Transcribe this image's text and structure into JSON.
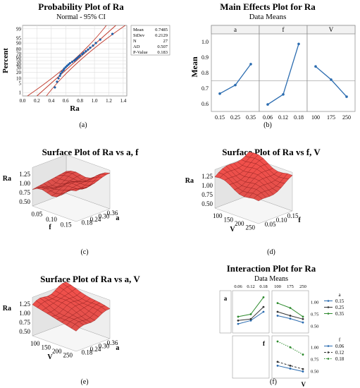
{
  "colors": {
    "dot": "#1f5fa8",
    "line": "#2b6cb0",
    "ci": "#c0392b",
    "surface": "#d9534f",
    "surface_dark": "#8b1a1a",
    "green": "#2e8b2e",
    "grid": "#d8d8d8"
  },
  "chart_data": [
    {
      "id": "a",
      "type": "scatter",
      "title": "Probability Plot of Ra",
      "subtitle": "Normal - 95% CI",
      "xlabel": "Ra",
      "ylabel": "Percent",
      "xticks": [
        "0.0",
        "0.2",
        "0.4",
        "0.6",
        "0.8",
        "1.0",
        "1.2",
        "1.4"
      ],
      "yticks": [
        "1",
        "5",
        "10",
        "20",
        "30",
        "40",
        "50",
        "60",
        "70",
        "80",
        "90",
        "95",
        "99"
      ],
      "xlim": [
        0,
        1.45
      ],
      "stats": [
        {
          "label": "Mean",
          "value": "0.7485"
        },
        {
          "label": "StDev",
          "value": "0.2129"
        },
        {
          "label": "N",
          "value": "27"
        },
        {
          "label": "AD",
          "value": "0.507"
        },
        {
          "label": "P-Value",
          "value": "0.183"
        }
      ],
      "mean": 0.7485,
      "stdev": 0.2129,
      "points": [
        0.45,
        0.48,
        0.5,
        0.52,
        0.53,
        0.55,
        0.57,
        0.58,
        0.6,
        0.62,
        0.64,
        0.66,
        0.69,
        0.72,
        0.74,
        0.76,
        0.78,
        0.8,
        0.83,
        0.85,
        0.88,
        0.91,
        0.94,
        0.98,
        1.02,
        1.08,
        1.25
      ],
      "caption": "(a)"
    },
    {
      "id": "b",
      "type": "line",
      "title": "Main Effects Plot for Ra",
      "subtitle": "Data Means",
      "ylabel": "Mean",
      "ylim": [
        0.55,
        1.05
      ],
      "yticks": [
        "0.6",
        "0.7",
        "0.8",
        "0.9",
        "1.0"
      ],
      "reference_mean": 0.7485,
      "panels": [
        {
          "name": "a",
          "x": [
            "0.15",
            "0.25",
            "0.35"
          ],
          "y": [
            0.665,
            0.72,
            0.855
          ]
        },
        {
          "name": "f",
          "x": [
            "0.06",
            "0.12",
            "0.18"
          ],
          "y": [
            0.595,
            0.66,
            0.985
          ]
        },
        {
          "name": "V",
          "x": [
            "100",
            "175",
            "250"
          ],
          "y": [
            0.84,
            0.755,
            0.645
          ]
        }
      ],
      "caption": "(b)"
    },
    {
      "id": "c",
      "type": "surface",
      "title": "Surface Plot of Ra vs a, f",
      "zlabel": "Ra",
      "zticks": [
        "0.50",
        "0.75",
        "1.00",
        "1.25"
      ],
      "xlabel": "f",
      "xticks": [
        "0.05",
        "0.10",
        "0.15"
      ],
      "ylabel": "a",
      "yticks": [
        "0.18",
        "0.24",
        "0.30",
        "0.36"
      ],
      "caption": "(c)"
    },
    {
      "id": "d",
      "type": "surface",
      "title": "Surface Plot of Ra vs f, V",
      "zlabel": "Ra",
      "zticks": [
        "0.50",
        "0.75",
        "1.00",
        "1.25"
      ],
      "xlabel": "V",
      "xticks": [
        "100",
        "150",
        "200",
        "250"
      ],
      "ylabel": "f",
      "yticks": [
        "0.05",
        "0.10",
        "0.15"
      ],
      "caption": "(d)"
    },
    {
      "id": "e",
      "type": "surface",
      "title": "Surface Plot of Ra vs a, V",
      "zlabel": "Ra",
      "zticks": [
        "0.50",
        "0.75",
        "1.00",
        "1.25"
      ],
      "xlabel": "V",
      "xticks": [
        "100",
        "150",
        "200",
        "250"
      ],
      "ylabel": "a",
      "yticks": [
        "0.18",
        "0.24",
        "0.30",
        "0.36"
      ],
      "caption": "(e)"
    },
    {
      "id": "f",
      "type": "line",
      "title": "Interaction Plot for Ra",
      "subtitle": "Data Means",
      "factors": [
        "a",
        "f",
        "V"
      ],
      "f_ticks": [
        "0.06",
        "0.12",
        "0.18"
      ],
      "V_ticks": [
        "100",
        "175",
        "250"
      ],
      "yticks": [
        "0.50",
        "0.75",
        "1.00"
      ],
      "legend_a": {
        "title": "a",
        "entries": [
          "0.15",
          "0.25",
          "0.35"
        ]
      },
      "legend_f": {
        "title": "f",
        "entries": [
          "0.06",
          "0.12",
          "0.18"
        ]
      },
      "cells": [
        {
          "row": "a",
          "col": "f",
          "series": [
            [
              0.55,
              0.62,
              0.8
            ],
            [
              0.62,
              0.65,
              0.9
            ],
            [
              0.7,
              0.75,
              1.1
            ]
          ]
        },
        {
          "row": "a",
          "col": "V",
          "series": [
            [
              0.72,
              0.66,
              0.58
            ],
            [
              0.8,
              0.72,
              0.65
            ],
            [
              0.98,
              0.88,
              0.7
            ]
          ]
        },
        {
          "row": "f",
          "col": "V",
          "series": [
            [
              0.62,
              0.56,
              0.5
            ],
            [
              0.7,
              0.62,
              0.55
            ],
            [
              1.12,
              1.0,
              0.85
            ]
          ]
        }
      ],
      "caption": "(f)"
    }
  ]
}
